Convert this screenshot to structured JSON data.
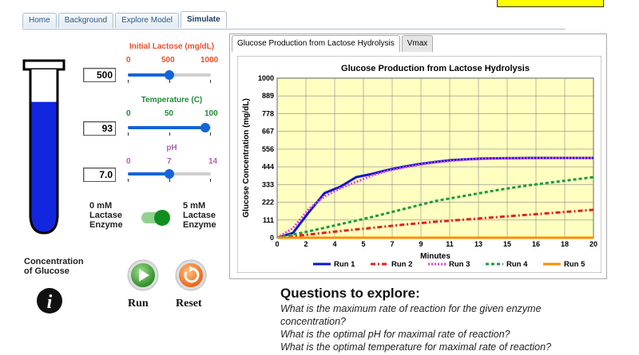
{
  "tabs": [
    "Home",
    "Background",
    "Explore Model",
    "Simulate"
  ],
  "active_tab": "Simulate",
  "sliders": {
    "lactose": {
      "title": "Initial Lactose (mg/dL)",
      "ticks": [
        "0",
        "500",
        "1000"
      ],
      "value_text": "500",
      "value": 500,
      "min": 0,
      "max": 1000,
      "color": "#e8502a"
    },
    "temperature": {
      "title": "Temperature (C)",
      "ticks": [
        "0",
        "50",
        "100"
      ],
      "value_text": "93",
      "value": 93,
      "min": 0,
      "max": 100,
      "color": "#1f8c3a"
    },
    "ph": {
      "title": "pH",
      "ticks": [
        "0",
        "7",
        "14"
      ],
      "value_text": "7.0",
      "value": 7.0,
      "min": 0,
      "max": 14,
      "color": "#b35fb3"
    }
  },
  "enzyme": {
    "left_label_lines": [
      "0 mM",
      "Lactase",
      "Enzyme"
    ],
    "right_label_lines": [
      "5 mM",
      "Lactase",
      "Enzyme"
    ],
    "toggle_on": true
  },
  "test_tube": {
    "fill_fraction": 0.83,
    "color": "#1226e0"
  },
  "glucose_label_lines": [
    "Concentration",
    "of Glucose"
  ],
  "buttons": {
    "run": "Run",
    "reset": "Reset"
  },
  "chart_tabs": [
    "Glucose Production from Lactose Hydrolysis",
    "Vmax"
  ],
  "questions": {
    "title": "Questions to explore:",
    "items": [
      "What is the maximum rate of reaction for the given enzyme",
      "concentration?",
      "What is the optimal pH for maximal rate of reaction?",
      "What is the optimal temperature for maximal rate of reaction?"
    ]
  },
  "chart_data": {
    "type": "line",
    "title": "Glucose Production from Lactose Hydrolysis",
    "xlabel": "Minutes",
    "ylabel": "Glucose Concentration (mg/dL)",
    "xlim": [
      0,
      20
    ],
    "ylim": [
      0,
      1000
    ],
    "x_ticks": [
      "0",
      "2",
      "4",
      "5",
      "7",
      "9",
      "11",
      "13",
      "15",
      "16",
      "18",
      "20"
    ],
    "y_ticks": [
      "0",
      "111",
      "222",
      "333",
      "444",
      "556",
      "667",
      "778",
      "889",
      "1000"
    ],
    "grid": true,
    "legend_position": "bottom",
    "series": [
      {
        "name": "Run 1",
        "color": "#0a16d0",
        "dash": "solid",
        "x": [
          0,
          1,
          2,
          3,
          4,
          5,
          6,
          7,
          8,
          9,
          10,
          11,
          12,
          13,
          14,
          15,
          16,
          17,
          18,
          19,
          20
        ],
        "y": [
          0,
          30,
          160,
          280,
          320,
          380,
          400,
          425,
          445,
          462,
          475,
          486,
          492,
          496,
          498,
          499,
          500,
          500,
          500,
          500,
          500
        ]
      },
      {
        "name": "Run 2",
        "color": "#e02020",
        "dash": "dashdot",
        "x": [
          0,
          2,
          4,
          6,
          8,
          10,
          12,
          14,
          16,
          18,
          20
        ],
        "y": [
          0,
          20,
          42,
          62,
          82,
          100,
          115,
          130,
          145,
          160,
          175
        ]
      },
      {
        "name": "Run 3",
        "color": "#e040e0",
        "dash": "dotted",
        "x": [
          0,
          1,
          2,
          3,
          4,
          5,
          6,
          7,
          8,
          9,
          10,
          11,
          12,
          13,
          14,
          15,
          16,
          17,
          18,
          19,
          20
        ],
        "y": [
          0,
          60,
          180,
          260,
          310,
          350,
          390,
          420,
          440,
          458,
          472,
          482,
          490,
          494,
          497,
          498,
          499,
          499,
          500,
          500,
          500
        ]
      },
      {
        "name": "Run 4",
        "color": "#1a9a40",
        "dash": "dashed",
        "x": [
          0,
          2,
          4,
          6,
          8,
          10,
          12,
          14,
          16,
          18,
          20
        ],
        "y": [
          0,
          40,
          85,
          130,
          180,
          230,
          265,
          300,
          330,
          355,
          380
        ]
      },
      {
        "name": "Run 5",
        "color": "#ff8c00",
        "dash": "solid",
        "x": [
          0,
          2,
          4,
          6,
          8,
          10,
          12,
          14,
          16,
          18,
          20
        ],
        "y": [
          0,
          0,
          0,
          0,
          0,
          0,
          0,
          0,
          0,
          0,
          0
        ]
      }
    ]
  }
}
